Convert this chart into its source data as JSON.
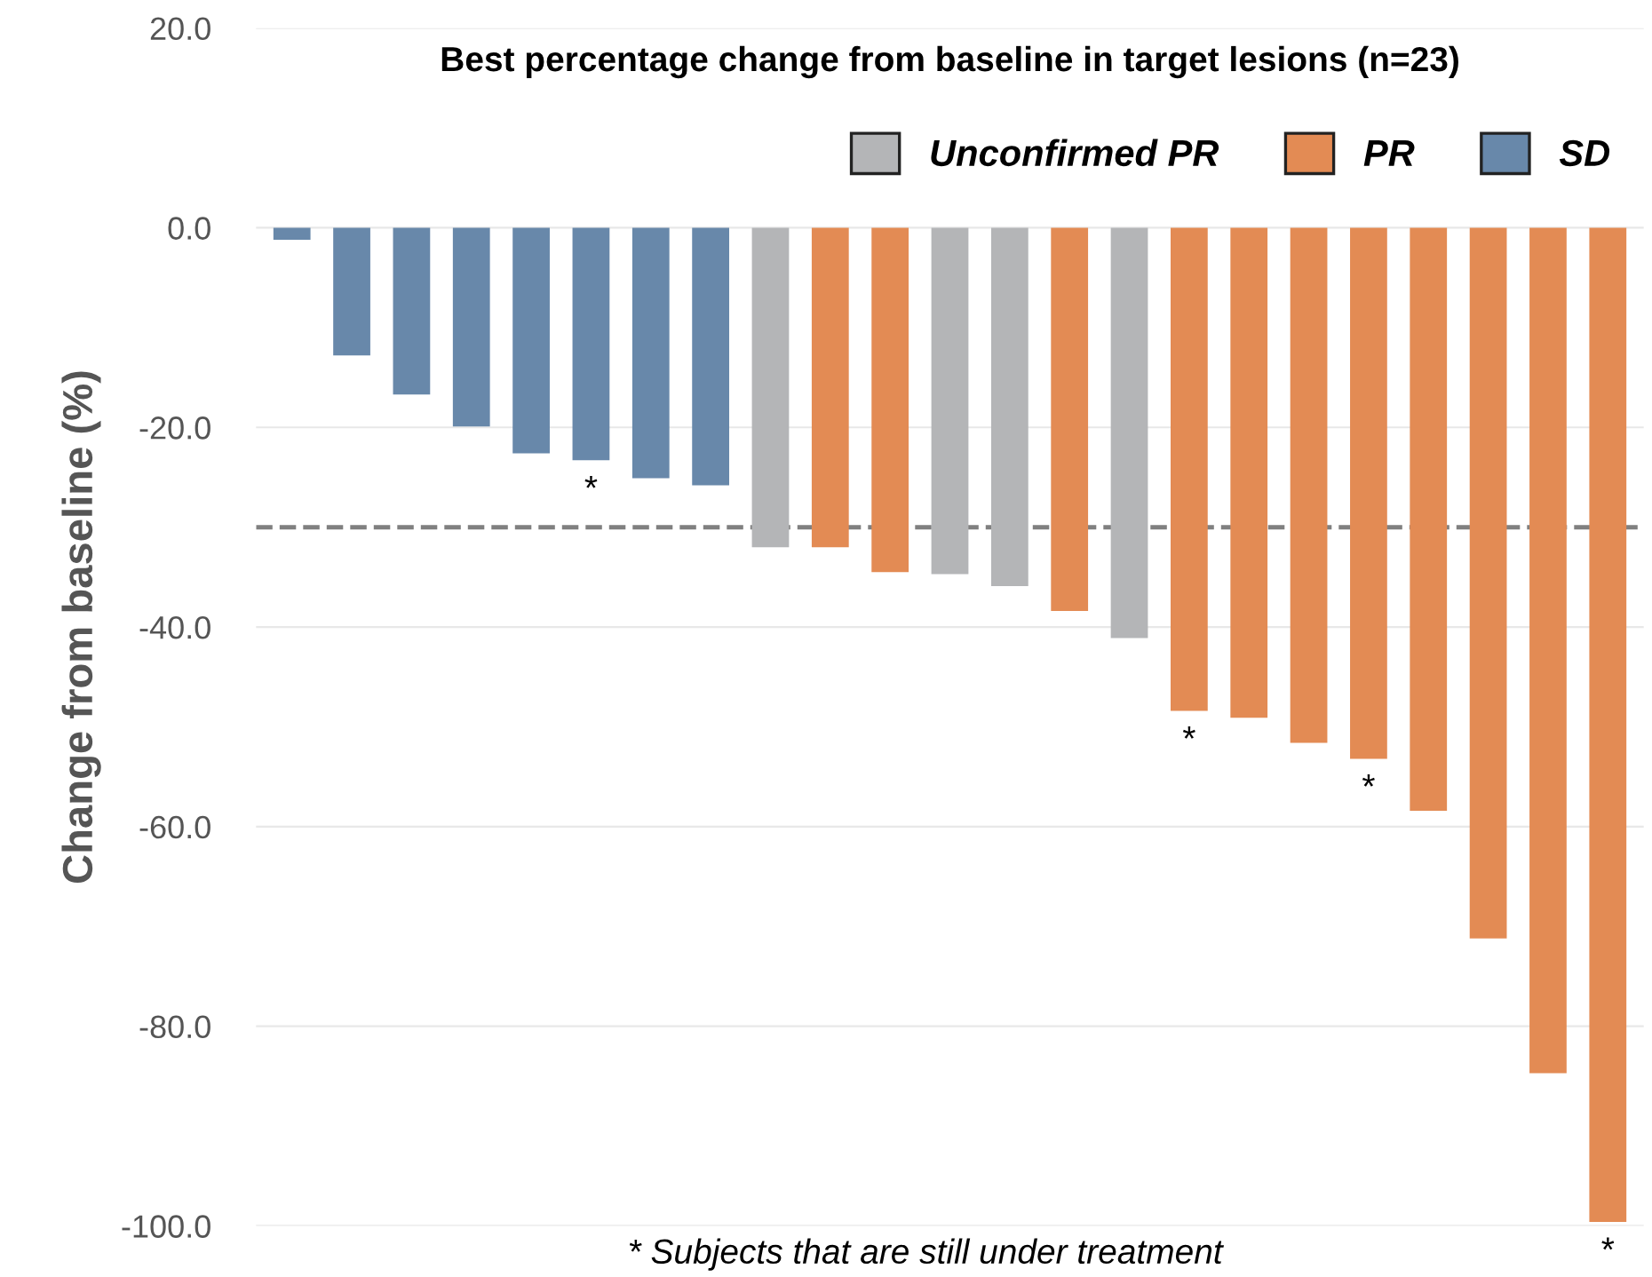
{
  "chart_data": {
    "type": "bar",
    "title": "Best percentage change from baseline in target lesions (n=23)",
    "ylabel": "Change from baseline (%)",
    "categories": [
      null,
      null,
      null,
      null,
      null,
      null,
      null,
      null,
      null,
      null,
      null,
      null,
      null,
      null,
      null,
      null,
      null,
      null,
      null,
      null,
      null,
      null,
      null
    ],
    "series": [
      {
        "name": "Unconfirmed PR",
        "color": "#b4b5b7",
        "values": [
          null,
          null,
          null,
          null,
          null,
          null,
          null,
          null,
          -32.0,
          null,
          null,
          -34.7,
          -35.9,
          null,
          -41.1,
          null,
          null,
          null,
          null,
          null,
          null,
          null,
          null
        ],
        "value_labels": [
          null,
          null,
          null,
          null,
          null,
          null,
          null,
          null,
          null,
          null,
          null,
          null,
          null,
          null,
          null,
          null,
          null,
          null,
          null,
          null,
          null,
          null,
          null
        ]
      },
      {
        "name": "PR",
        "color": "#e38b54",
        "values": [
          null,
          null,
          null,
          null,
          null,
          null,
          null,
          null,
          null,
          -32.0,
          -34.5,
          null,
          null,
          -38.4,
          null,
          -48.4,
          -49.1,
          -51.6,
          -53.2,
          -58.4,
          -71.2,
          -84.7,
          -99.6
        ],
        "value_labels": [
          null,
          null,
          null,
          null,
          null,
          null,
          null,
          null,
          null,
          null,
          null,
          null,
          null,
          null,
          null,
          "*",
          null,
          null,
          "*",
          null,
          null,
          null,
          "*"
        ]
      },
      {
        "name": "SD",
        "color": "#6888aa",
        "values": [
          -1.2,
          -12.8,
          -16.7,
          -19.9,
          -22.6,
          -23.3,
          -25.1,
          -25.8,
          null,
          null,
          null,
          null,
          null,
          null,
          null,
          null,
          null,
          null,
          null,
          null,
          null,
          null,
          null
        ],
        "value_labels": [
          null,
          null,
          null,
          null,
          null,
          "*",
          null,
          null,
          null,
          null,
          null,
          null,
          null,
          null,
          null,
          null,
          null,
          null,
          null,
          null,
          null,
          null,
          null
        ]
      }
    ],
    "ylim": [
      -100,
      20
    ],
    "yticks": [
      {
        "value": 20,
        "label": "20.0"
      },
      {
        "value": 0,
        "label": "0.0"
      },
      {
        "value": -20,
        "label": "-20.0"
      },
      {
        "value": -40,
        "label": "-40.0"
      },
      {
        "value": -60,
        "label": "-60.0"
      },
      {
        "value": -80,
        "label": "-80.0"
      },
      {
        "value": -100,
        "label": "-100.0"
      }
    ],
    "grid": "y",
    "legend": "top right",
    "ref_lines": [
      {
        "axis": "y",
        "value": -30,
        "color": "#808080",
        "line_style": "dashed"
      }
    ],
    "annotations": [
      "* Subjects that are still under treatment"
    ]
  }
}
